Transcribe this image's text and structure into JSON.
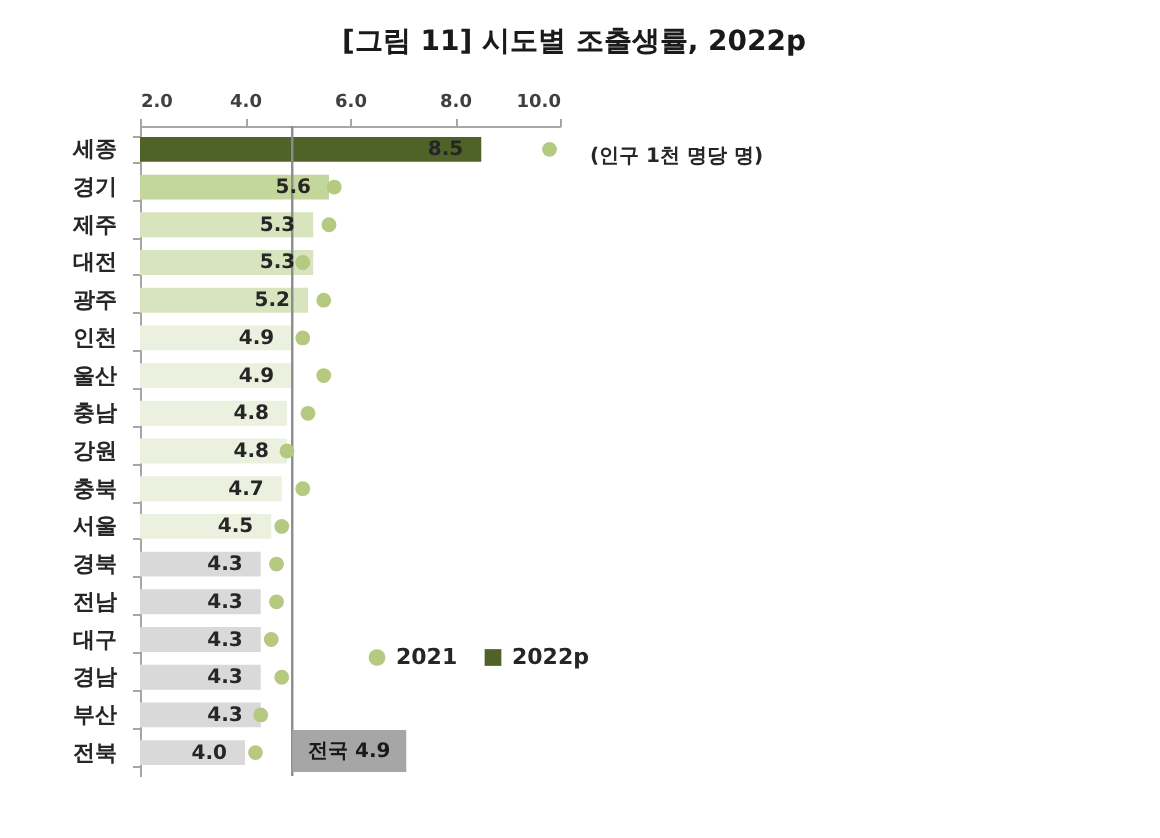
{
  "chart_data": {
    "type": "bar",
    "orientation": "horizontal",
    "title": "[그림 11] 시도별 조출생률, 2022p",
    "categories": [
      "세종",
      "경기",
      "제주",
      "대전",
      "광주",
      "인천",
      "울산",
      "충남",
      "강원",
      "충북",
      "서울",
      "경북",
      "전남",
      "대구",
      "경남",
      "부산",
      "전북"
    ],
    "series": [
      {
        "name": "2021",
        "type": "scatter",
        "color": "#b5c981",
        "values": [
          9.8,
          5.7,
          5.6,
          5.1,
          5.5,
          5.1,
          5.5,
          5.2,
          4.8,
          5.1,
          4.7,
          4.6,
          4.6,
          4.5,
          4.7,
          4.3,
          4.2
        ]
      },
      {
        "name": "2022p",
        "color": "#4f6228",
        "colors": [
          "#4f6228",
          "#c3d69b",
          "#d7e4bd",
          "#d7e4bd",
          "#d7e4bd",
          "#ebf1de",
          "#ebf1de",
          "#ebf1de",
          "#ebf1de",
          "#ebf1de",
          "#ebf1de",
          "#d9d9d9",
          "#d9d9d9",
          "#d9d9d9",
          "#d9d9d9",
          "#d9d9d9",
          "#d9d9d9"
        ],
        "values": [
          8.5,
          5.6,
          5.3,
          5.3,
          5.2,
          4.9,
          4.9,
          4.8,
          4.8,
          4.7,
          4.5,
          4.3,
          4.3,
          4.3,
          4.3,
          4.3,
          4.0
        ],
        "value_labels": [
          "8.5",
          "5.6",
          "5.3",
          "5.3",
          "5.2",
          "4.9",
          "4.9",
          "4.8",
          "4.8",
          "4.7",
          "4.5",
          "4.3",
          "4.3",
          "4.3",
          "4.3",
          "4.3",
          "4.0"
        ]
      }
    ],
    "xlim": [
      2,
      10
    ],
    "xticks": [
      {
        "value": 2,
        "label": "2.0"
      },
      {
        "value": 4,
        "label": "4.0"
      },
      {
        "value": 6,
        "label": "6.0"
      },
      {
        "value": 8,
        "label": "8.0"
      },
      {
        "value": 10,
        "label": "10.0"
      }
    ],
    "ref_lines": [
      {
        "axis": "x",
        "value": 4.9,
        "label": "전국 4.9",
        "color": "#8c8c8c"
      }
    ],
    "annotations": [
      "(인구 1천 명당 명)"
    ],
    "legend": "bottom right",
    "marker": "circle",
    "grid": false
  }
}
